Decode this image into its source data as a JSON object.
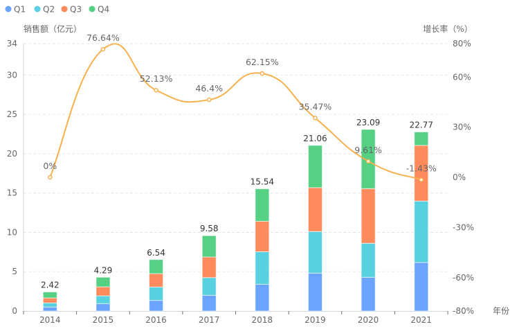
{
  "chart_data": {
    "type": "bar",
    "subtype": "stacked-bar-with-line",
    "categories": [
      "2014",
      "2015",
      "2016",
      "2017",
      "2018",
      "2019",
      "2020",
      "2021"
    ],
    "xlabel": "年份",
    "ylabel": "销售额（亿元）",
    "y2label": "增长率（%）",
    "ylim": [
      0,
      34
    ],
    "yticks": [
      0,
      5,
      10,
      15,
      20,
      25,
      30,
      34
    ],
    "y2lim": [
      -80,
      80
    ],
    "y2ticks": [
      "-80%",
      "-60%",
      "-30%",
      "0%",
      "30%",
      "60%",
      "80%"
    ],
    "y2tick_values": [
      -80,
      -60,
      -30,
      0,
      30,
      60,
      80
    ],
    "grid": true,
    "legend": {
      "position": "top-left",
      "entries": [
        "Q1",
        "Q2",
        "Q3",
        "Q4"
      ]
    },
    "series": [
      {
        "name": "Q1",
        "type": "bar",
        "color": "#6aa4ff",
        "values": [
          0.5,
          0.93,
          1.35,
          2.0,
          3.4,
          4.82,
          4.29,
          6.17
        ]
      },
      {
        "name": "Q2",
        "type": "bar",
        "color": "#57d0e0",
        "values": [
          0.53,
          1.0,
          1.7,
          2.25,
          4.14,
          5.29,
          4.32,
          7.81
        ]
      },
      {
        "name": "Q3",
        "type": "bar",
        "color": "#ff8a5b",
        "values": [
          0.63,
          1.14,
          1.7,
          2.62,
          3.87,
          5.58,
          6.95,
          7.08
        ]
      },
      {
        "name": "Q4",
        "type": "bar",
        "color": "#56d184",
        "values": [
          0.76,
          1.22,
          1.79,
          2.71,
          4.13,
          5.37,
          7.53,
          1.71
        ]
      },
      {
        "name": "增长率",
        "type": "line",
        "axis": "right",
        "color": "#f6b04c",
        "values": [
          0,
          76.64,
          52.13,
          46.4,
          62.15,
          35.47,
          9.61,
          -1.43
        ]
      }
    ],
    "totals": [
      2.42,
      4.29,
      6.54,
      9.58,
      15.54,
      21.06,
      23.09,
      22.77
    ],
    "total_labels": [
      "2.42",
      "4.29",
      "6.54",
      "9.58",
      "15.54",
      "21.06",
      "23.09",
      "22.77"
    ],
    "line_labels": [
      "0%",
      "76.64%",
      "52.13%",
      "46.4%",
      "62.15%",
      "35.47%",
      "9.61%",
      "-1.43%"
    ]
  }
}
